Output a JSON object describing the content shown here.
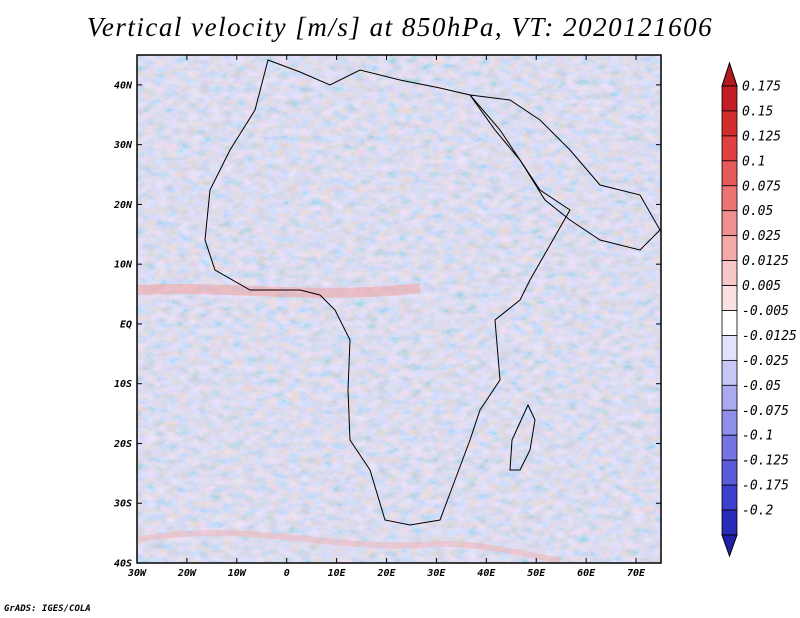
{
  "title": "Vertical velocity [m/s] at 850hPa, VT: 2020121606",
  "credit": "GrADS: IGES/COLA",
  "map": {
    "lon_range": [
      -30,
      75
    ],
    "lat_range": [
      -40,
      45
    ],
    "lat_ticks": [
      {
        "value": 40,
        "label": "40N"
      },
      {
        "value": 30,
        "label": "30N"
      },
      {
        "value": 20,
        "label": "20N"
      },
      {
        "value": 10,
        "label": "10N"
      },
      {
        "value": 0,
        "label": "EQ"
      },
      {
        "value": -10,
        "label": "10S"
      },
      {
        "value": -20,
        "label": "20S"
      },
      {
        "value": -30,
        "label": "30S"
      },
      {
        "value": -40,
        "label": "40S"
      }
    ],
    "lon_ticks": [
      {
        "value": -30,
        "label": "30W"
      },
      {
        "value": -20,
        "label": "20W"
      },
      {
        "value": -10,
        "label": "10W"
      },
      {
        "value": 0,
        "label": "0"
      },
      {
        "value": 10,
        "label": "10E"
      },
      {
        "value": 20,
        "label": "20E"
      },
      {
        "value": 30,
        "label": "30E"
      },
      {
        "value": 40,
        "label": "40E"
      },
      {
        "value": 50,
        "label": "50E"
      },
      {
        "value": 60,
        "label": "60E"
      },
      {
        "value": 70,
        "label": "70E"
      }
    ]
  },
  "colorbar": {
    "levels": [
      {
        "label": "0.175",
        "color": "#c21d24"
      },
      {
        "label": "0.15",
        "color": "#d22d2d"
      },
      {
        "label": "0.125",
        "color": "#e04040"
      },
      {
        "label": "0.1",
        "color": "#e65a5a"
      },
      {
        "label": "0.075",
        "color": "#ec7474"
      },
      {
        "label": "0.05",
        "color": "#f08f8f"
      },
      {
        "label": "0.025",
        "color": "#f4aaaa"
      },
      {
        "label": "0.0125",
        "color": "#f8c8c8"
      },
      {
        "label": "0.005",
        "color": "#fbe2e2"
      },
      {
        "label": "-0.005",
        "color": "#ffffff"
      },
      {
        "label": "-0.0125",
        "color": "#e2e2fb"
      },
      {
        "label": "-0.025",
        "color": "#c8c8f6"
      },
      {
        "label": "-0.05",
        "color": "#aaaaf0"
      },
      {
        "label": "-0.075",
        "color": "#8f8fea"
      },
      {
        "label": "-0.1",
        "color": "#7474e3"
      },
      {
        "label": "-0.125",
        "color": "#5a5adb"
      },
      {
        "label": "-0.175",
        "color": "#3f3fcf"
      },
      {
        "label": "-0.2",
        "color": "#2a2ab8"
      }
    ],
    "top_color": "#b01a20",
    "bottom_color": "#1f1fa8"
  }
}
